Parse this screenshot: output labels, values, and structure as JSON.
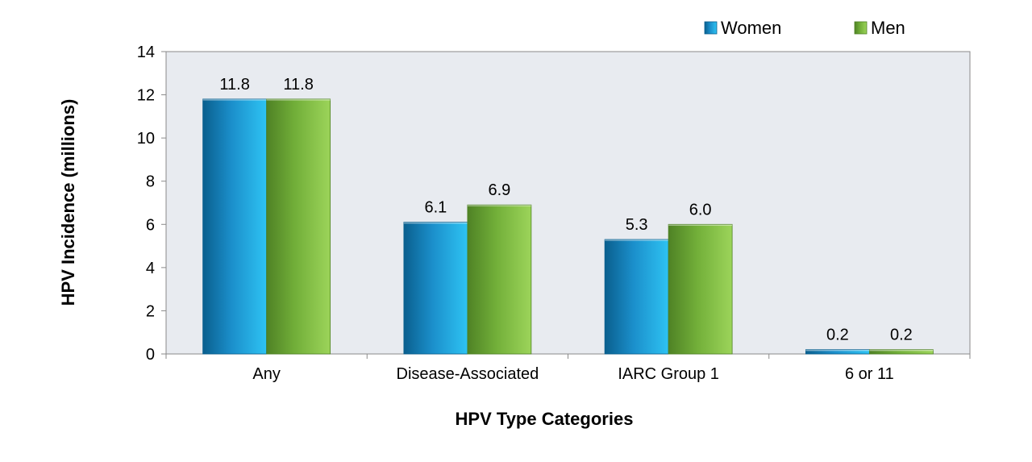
{
  "chart_data": {
    "type": "bar",
    "title": "",
    "xlabel": "HPV Type Categories",
    "ylabel": "HPV Incidence (millions)",
    "categories": [
      "Any",
      "Disease-Associated",
      "IARC Group 1",
      "6 or 11"
    ],
    "series": [
      {
        "name": "Women",
        "values": [
          11.8,
          6.1,
          5.3,
          0.2
        ],
        "color": "#1C9ED8"
      },
      {
        "name": "Men",
        "values": [
          11.8,
          6.9,
          6.0,
          0.2
        ],
        "color": "#7DB93F"
      }
    ],
    "data_labels": [
      [
        "11.8",
        "6.1",
        "5.3",
        "0.2"
      ],
      [
        "11.8",
        "6.9",
        "6.0",
        "0.2"
      ]
    ],
    "ylim": [
      0,
      14
    ],
    "yticks": [
      0,
      2,
      4,
      6,
      8,
      10,
      12,
      14
    ],
    "grid": false,
    "legend_position": "top-right",
    "plot_background": "#E8EBF0"
  }
}
